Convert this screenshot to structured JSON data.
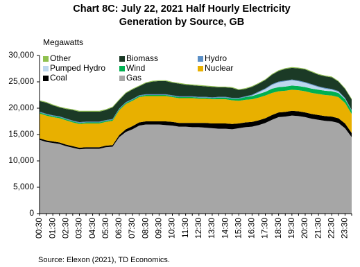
{
  "chart_data": {
    "type": "stacked-area",
    "title": "Chart 8C: July 22, 2021 Half Hourly Electricity Generation by Source, GB",
    "y_label": "Megawatts",
    "source": "Source:  Elexon  (2021), TD Economics.",
    "categories": [
      "00:30",
      null,
      "01:30",
      null,
      "02:30",
      null,
      "03:30",
      null,
      "04:30",
      null,
      "05:30",
      null,
      "06:30",
      null,
      "07:30",
      null,
      "08:30",
      null,
      "09:30",
      null,
      "10:30",
      null,
      "11:30",
      null,
      "12:30",
      null,
      "13:30",
      null,
      "14:30",
      null,
      "15:30",
      null,
      "16:30",
      null,
      "17:30",
      null,
      "18:30",
      null,
      "19:30",
      null,
      "20:30",
      null,
      "21:30",
      null,
      "22:30",
      null,
      "23:30",
      null
    ],
    "series": [
      {
        "name": "Gas",
        "color": "#a6a6a6",
        "values": [
          14000,
          13600,
          13400,
          13200,
          12800,
          12500,
          12200,
          12300,
          12300,
          12300,
          12600,
          12700,
          14500,
          15500,
          16000,
          16700,
          16900,
          16900,
          16900,
          16800,
          16700,
          16500,
          16500,
          16400,
          16400,
          16300,
          16200,
          16100,
          16100,
          16000,
          16200,
          16400,
          16500,
          16800,
          17200,
          17800,
          18300,
          18400,
          18600,
          18500,
          18300,
          18000,
          17800,
          17600,
          17500,
          17200,
          16200,
          14500
        ]
      },
      {
        "name": "Coal",
        "color": "#000000",
        "values": [
          300,
          300,
          300,
          300,
          300,
          300,
          300,
          300,
          300,
          300,
          300,
          300,
          400,
          500,
          600,
          600,
          600,
          600,
          600,
          700,
          700,
          700,
          700,
          800,
          800,
          900,
          900,
          1000,
          1000,
          1000,
          900,
          900,
          900,
          900,
          900,
          900,
          900,
          900,
          900,
          900,
          900,
          900,
          900,
          900,
          900,
          900,
          900,
          800
        ]
      },
      {
        "name": "Nuclear",
        "color": "#e8b000",
        "values": [
          4700,
          4700,
          4600,
          4600,
          4600,
          4500,
          4500,
          4500,
          4500,
          4500,
          4500,
          4600,
          4700,
          4800,
          4800,
          4800,
          4800,
          4800,
          4800,
          4800,
          4700,
          4700,
          4700,
          4700,
          4600,
          4600,
          4600,
          4600,
          4600,
          4500,
          4300,
          4300,
          4300,
          4300,
          4300,
          4200,
          4000,
          4000,
          4000,
          4000,
          4000,
          4000,
          4000,
          4000,
          4000,
          4000,
          3900,
          3600
        ]
      },
      {
        "name": "Wind",
        "color": "#00b050",
        "values": [
          200,
          200,
          200,
          200,
          200,
          200,
          200,
          200,
          200,
          200,
          200,
          200,
          200,
          200,
          200,
          200,
          200,
          200,
          200,
          200,
          200,
          200,
          200,
          200,
          200,
          200,
          200,
          300,
          300,
          300,
          400,
          500,
          600,
          700,
          700,
          800,
          800,
          800,
          800,
          800,
          800,
          800,
          800,
          800,
          800,
          800,
          700,
          600
        ]
      },
      {
        "name": "Pumped Hydro",
        "color": "#bdd7ee",
        "values": [
          0,
          0,
          0,
          0,
          0,
          0,
          0,
          0,
          0,
          0,
          0,
          0,
          0,
          0,
          0,
          0,
          0,
          0,
          0,
          0,
          0,
          0,
          0,
          0,
          0,
          0,
          0,
          0,
          0,
          0,
          0,
          0,
          100,
          300,
          500,
          700,
          900,
          1000,
          1000,
          900,
          800,
          700,
          500,
          400,
          300,
          200,
          100,
          0
        ]
      },
      {
        "name": "Hydro",
        "color": "#5b8fc6",
        "values": [
          150,
          150,
          150,
          150,
          150,
          150,
          150,
          150,
          150,
          150,
          150,
          150,
          150,
          150,
          150,
          150,
          150,
          150,
          150,
          150,
          150,
          150,
          150,
          150,
          150,
          150,
          150,
          150,
          150,
          150,
          150,
          150,
          150,
          150,
          150,
          150,
          150,
          150,
          150,
          150,
          150,
          150,
          150,
          150,
          150,
          150,
          150,
          150
        ]
      },
      {
        "name": "Biomass",
        "color": "#1b3a26",
        "values": [
          2000,
          2100,
          1900,
          1700,
          1800,
          2000,
          2000,
          1900,
          1900,
          1900,
          1900,
          2200,
          1600,
          1700,
          1800,
          1700,
          2100,
          2400,
          2500,
          2500,
          2400,
          2400,
          2200,
          2100,
          2100,
          2000,
          2000,
          1800,
          1800,
          1900,
          1500,
          1400,
          1500,
          1500,
          1600,
          1800,
          2000,
          2200,
          2200,
          2300,
          2400,
          2300,
          2200,
          2200,
          2200,
          1800,
          1700,
          2000
        ]
      },
      {
        "name": "Other",
        "color": "#8fc04e",
        "values": [
          150,
          150,
          150,
          150,
          150,
          150,
          150,
          150,
          150,
          150,
          150,
          150,
          150,
          150,
          150,
          150,
          150,
          150,
          150,
          150,
          150,
          150,
          150,
          150,
          150,
          150,
          150,
          150,
          150,
          150,
          150,
          150,
          150,
          150,
          150,
          150,
          150,
          150,
          150,
          150,
          150,
          150,
          150,
          150,
          150,
          150,
          150,
          150
        ]
      }
    ],
    "ylim": [
      0,
      30000
    ],
    "yticks": [
      0,
      {
        "value": 5000,
        "label": "5,000"
      },
      {
        "value": 10000,
        "label": "10,000"
      },
      {
        "value": 15000,
        "label": "15,000"
      },
      {
        "value": 20000,
        "label": "20,000"
      },
      {
        "value": 25000,
        "label": "25,000"
      },
      {
        "value": 30000,
        "label": "30,000"
      }
    ],
    "grid": false,
    "legend": "top-left"
  }
}
